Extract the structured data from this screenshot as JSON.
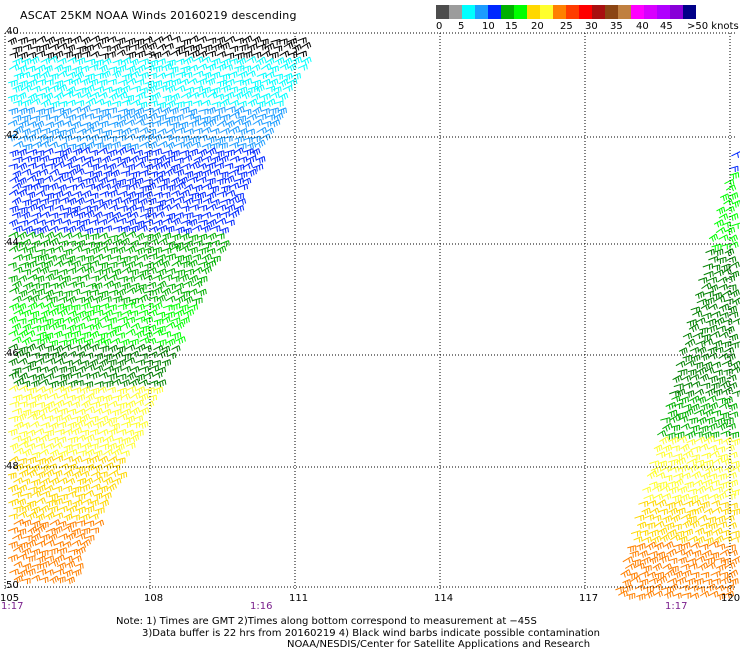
{
  "title": "ASCAT 25KM NOAA Winds 20160219 descending",
  "colorbar": {
    "colors": [
      "#4d4d4d",
      "#9c9c9c",
      "#00ffff",
      "#1c9cff",
      "#0028ff",
      "#00b000",
      "#00ff00",
      "#ffd800",
      "#ffff2e",
      "#ff8000",
      "#ff3c00",
      "#ff0000",
      "#a81010",
      "#8b4513",
      "#c08040",
      "#ff00ff",
      "#d800ff",
      "#b000ff",
      "#8800d8",
      "#000088"
    ],
    "labels": [
      "0",
      "5",
      "10",
      "15",
      "20",
      "25",
      "30",
      "35",
      "40",
      "45",
      ">50 knots"
    ]
  },
  "map": {
    "lon_labels": [
      "105",
      "108",
      "111",
      "114",
      "117",
      "120"
    ],
    "lat_labels": [
      "40",
      "42",
      "44",
      "46",
      "48",
      "50"
    ],
    "time_labels": [
      "1:17",
      "1:16",
      "1:17"
    ],
    "grid_color": "#000000",
    "barb_colors": [
      "#000000",
      "#00ffff",
      "#1c9cff",
      "#0028ff",
      "#00b000",
      "#00ff00",
      "#ffd800",
      "#ffff2e",
      "#ff8000",
      "#c04000",
      "#008000"
    ]
  },
  "notes": {
    "line1": "Note: 1) Times are GMT 2)Times along bottom correspond to measurement at −45S",
    "line2": "3)Data buffer is 22 hrs from 20160219 4) Black wind barbs indicate possible contamination",
    "line3": "NOAA/NESDIS/Center for Satellite Applications and Research"
  }
}
